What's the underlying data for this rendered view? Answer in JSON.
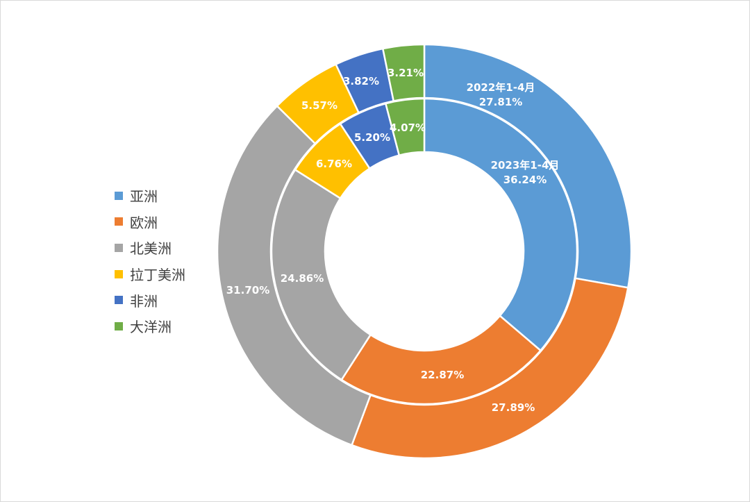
{
  "chart_data": {
    "type": "donut",
    "categories": [
      "亚洲",
      "欧洲",
      "北美洲",
      "拉丁美洲",
      "非洲",
      "大洋洲"
    ],
    "colors": [
      "#5B9BD5",
      "#ED7D31",
      "#A5A5A5",
      "#FFC000",
      "#4472C4",
      "#70AD47"
    ],
    "series": [
      {
        "name": "2023年1-4月",
        "ring": "inner",
        "values": [
          36.24,
          22.87,
          24.86,
          6.76,
          5.2,
          4.07
        ],
        "labels": [
          "36.24%",
          "22.87%",
          "24.86%",
          "6.76%",
          "5.20%",
          "4.07%"
        ]
      },
      {
        "name": "2022年1-4月",
        "ring": "outer",
        "values": [
          27.81,
          27.89,
          31.7,
          5.57,
          3.82,
          3.21
        ],
        "labels": [
          "27.81%",
          "27.89%",
          "31.70%",
          "5.57%",
          "3.82%",
          "3.21%"
        ]
      }
    ],
    "legend_position": "left"
  }
}
